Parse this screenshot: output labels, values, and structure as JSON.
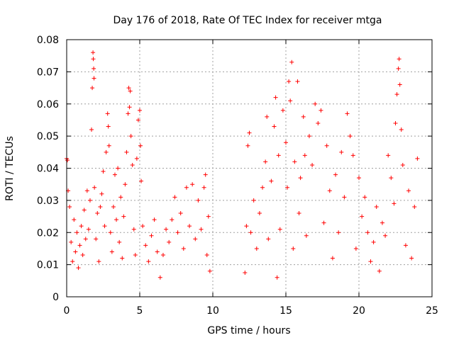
{
  "chart_data": {
    "type": "scatter",
    "title": "Day 176 of 2018, Rate Of TEC Index for receiver mtga",
    "xlabel": "GPS time / hours",
    "ylabel": "ROTI / TECUs",
    "xlim": [
      0,
      25
    ],
    "ylim": [
      0,
      0.08
    ],
    "xticks": [
      0,
      5,
      10,
      15,
      20,
      25
    ],
    "xtick_labels": [
      "0",
      "5",
      "10",
      "15",
      "20",
      "25"
    ],
    "yticks": [
      0,
      0.01,
      0.02,
      0.03,
      0.04,
      0.05,
      0.06,
      0.07,
      0.08
    ],
    "ytick_labels": [
      "0",
      "0.01",
      "0.02",
      "0.03",
      "0.04",
      "0.05",
      "0.06",
      "0.07",
      "0.08"
    ],
    "grid": true,
    "marker": "+",
    "color": "#ff0000",
    "series": [
      {
        "name": "ROTI",
        "points": [
          [
            0.0,
            0.043
          ],
          [
            0.05,
            0.0425
          ],
          [
            0.1,
            0.033
          ],
          [
            0.2,
            0.028
          ],
          [
            0.3,
            0.017
          ],
          [
            0.4,
            0.011
          ],
          [
            0.5,
            0.024
          ],
          [
            0.6,
            0.014
          ],
          [
            0.7,
            0.02
          ],
          [
            0.8,
            0.009
          ],
          [
            0.9,
            0.016
          ],
          [
            1.0,
            0.022
          ],
          [
            1.1,
            0.013
          ],
          [
            1.2,
            0.027
          ],
          [
            1.3,
            0.018
          ],
          [
            1.4,
            0.033
          ],
          [
            1.5,
            0.021
          ],
          [
            1.6,
            0.03
          ],
          [
            1.7,
            0.052
          ],
          [
            1.75,
            0.065
          ],
          [
            1.8,
            0.076
          ],
          [
            1.82,
            0.074
          ],
          [
            1.85,
            0.071
          ],
          [
            1.87,
            0.068
          ],
          [
            1.9,
            0.034
          ],
          [
            2.0,
            0.018
          ],
          [
            2.1,
            0.026
          ],
          [
            2.2,
            0.011
          ],
          [
            2.3,
            0.028
          ],
          [
            2.4,
            0.032
          ],
          [
            2.5,
            0.039
          ],
          [
            2.6,
            0.022
          ],
          [
            2.7,
            0.045
          ],
          [
            2.8,
            0.057
          ],
          [
            2.85,
            0.053
          ],
          [
            2.9,
            0.047
          ],
          [
            3.0,
            0.02
          ],
          [
            3.1,
            0.014
          ],
          [
            3.2,
            0.028
          ],
          [
            3.3,
            0.038
          ],
          [
            3.4,
            0.024
          ],
          [
            3.5,
            0.04
          ],
          [
            3.6,
            0.017
          ],
          [
            3.7,
            0.031
          ],
          [
            3.8,
            0.012
          ],
          [
            3.9,
            0.025
          ],
          [
            4.0,
            0.035
          ],
          [
            4.1,
            0.045
          ],
          [
            4.2,
            0.057
          ],
          [
            4.25,
            0.065
          ],
          [
            4.3,
            0.059
          ],
          [
            4.35,
            0.064
          ],
          [
            4.4,
            0.05
          ],
          [
            4.5,
            0.041
          ],
          [
            4.6,
            0.021
          ],
          [
            4.7,
            0.013
          ],
          [
            4.8,
            0.043
          ],
          [
            4.9,
            0.055
          ],
          [
            5.0,
            0.058
          ],
          [
            5.05,
            0.047
          ],
          [
            5.1,
            0.036
          ],
          [
            5.2,
            0.022
          ],
          [
            5.4,
            0.016
          ],
          [
            5.6,
            0.011
          ],
          [
            5.8,
            0.019
          ],
          [
            6.0,
            0.024
          ],
          [
            6.2,
            0.014
          ],
          [
            6.4,
            0.006
          ],
          [
            6.6,
            0.013
          ],
          [
            6.8,
            0.021
          ],
          [
            7.0,
            0.017
          ],
          [
            7.2,
            0.024
          ],
          [
            7.4,
            0.031
          ],
          [
            7.6,
            0.02
          ],
          [
            7.8,
            0.026
          ],
          [
            8.0,
            0.015
          ],
          [
            8.2,
            0.034
          ],
          [
            8.4,
            0.022
          ],
          [
            8.6,
            0.035
          ],
          [
            8.8,
            0.018
          ],
          [
            9.0,
            0.03
          ],
          [
            9.2,
            0.021
          ],
          [
            9.4,
            0.034
          ],
          [
            9.5,
            0.038
          ],
          [
            9.6,
            0.013
          ],
          [
            9.7,
            0.025
          ],
          [
            9.8,
            0.008
          ],
          [
            12.2,
            0.0075
          ],
          [
            12.3,
            0.022
          ],
          [
            12.4,
            0.047
          ],
          [
            12.5,
            0.051
          ],
          [
            12.6,
            0.02
          ],
          [
            12.8,
            0.03
          ],
          [
            13.0,
            0.015
          ],
          [
            13.2,
            0.026
          ],
          [
            13.4,
            0.034
          ],
          [
            13.6,
            0.042
          ],
          [
            13.7,
            0.056
          ],
          [
            13.8,
            0.018
          ],
          [
            14.0,
            0.036
          ],
          [
            14.2,
            0.053
          ],
          [
            14.3,
            0.062
          ],
          [
            14.4,
            0.006
          ],
          [
            14.5,
            0.044
          ],
          [
            14.6,
            0.021
          ],
          [
            14.8,
            0.058
          ],
          [
            15.0,
            0.048
          ],
          [
            15.1,
            0.034
          ],
          [
            15.2,
            0.067
          ],
          [
            15.3,
            0.061
          ],
          [
            15.4,
            0.073
          ],
          [
            15.5,
            0.015
          ],
          [
            15.6,
            0.042
          ],
          [
            15.8,
            0.067
          ],
          [
            15.9,
            0.026
          ],
          [
            16.0,
            0.037
          ],
          [
            16.2,
            0.056
          ],
          [
            16.3,
            0.044
          ],
          [
            16.4,
            0.019
          ],
          [
            16.6,
            0.05
          ],
          [
            16.8,
            0.041
          ],
          [
            17.0,
            0.06
          ],
          [
            17.2,
            0.054
          ],
          [
            17.4,
            0.058
          ],
          [
            17.6,
            0.023
          ],
          [
            17.8,
            0.047
          ],
          [
            18.0,
            0.033
          ],
          [
            18.2,
            0.012
          ],
          [
            18.4,
            0.038
          ],
          [
            18.6,
            0.02
          ],
          [
            18.8,
            0.045
          ],
          [
            19.0,
            0.031
          ],
          [
            19.2,
            0.057
          ],
          [
            19.4,
            0.05
          ],
          [
            19.6,
            0.044
          ],
          [
            19.8,
            0.015
          ],
          [
            20.0,
            0.037
          ],
          [
            20.2,
            0.025
          ],
          [
            20.4,
            0.031
          ],
          [
            20.6,
            0.02
          ],
          [
            20.8,
            0.011
          ],
          [
            21.0,
            0.017
          ],
          [
            21.2,
            0.028
          ],
          [
            21.4,
            0.008
          ],
          [
            21.6,
            0.023
          ],
          [
            21.8,
            0.019
          ],
          [
            22.0,
            0.044
          ],
          [
            22.2,
            0.037
          ],
          [
            22.4,
            0.029
          ],
          [
            22.5,
            0.054
          ],
          [
            22.6,
            0.063
          ],
          [
            22.7,
            0.071
          ],
          [
            22.75,
            0.074
          ],
          [
            22.8,
            0.066
          ],
          [
            22.9,
            0.052
          ],
          [
            23.0,
            0.041
          ],
          [
            23.2,
            0.016
          ],
          [
            23.4,
            0.033
          ],
          [
            23.6,
            0.012
          ],
          [
            23.8,
            0.028
          ],
          [
            24.0,
            0.043
          ]
        ]
      }
    ]
  }
}
